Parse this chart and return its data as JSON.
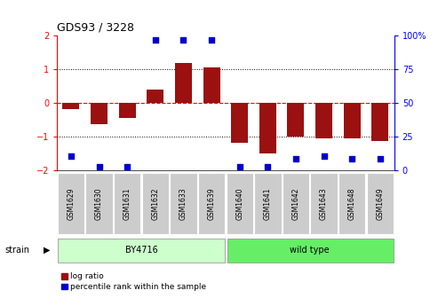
{
  "title": "GDS93 / 3228",
  "samples": [
    "GSM1629",
    "GSM1630",
    "GSM1631",
    "GSM1632",
    "GSM1633",
    "GSM1639",
    "GSM1640",
    "GSM1641",
    "GSM1642",
    "GSM1643",
    "GSM1648",
    "GSM1649"
  ],
  "log_ratio": [
    -0.2,
    -0.65,
    -0.45,
    0.4,
    1.2,
    1.05,
    -1.2,
    -1.5,
    -1.0,
    -1.05,
    -1.05,
    -1.15
  ],
  "percentile": [
    10,
    2,
    2,
    97,
    97,
    97,
    2,
    2,
    8,
    10,
    8,
    8
  ],
  "group1_label": "BY4716",
  "group2_label": "wild type",
  "strain_label": "strain",
  "ylim": [
    -2,
    2
  ],
  "y2lim": [
    0,
    100
  ],
  "yticks": [
    -2,
    -1,
    0,
    1,
    2
  ],
  "y2ticks": [
    0,
    25,
    50,
    75,
    100
  ],
  "bar_color": "#9B1010",
  "dot_color": "#0000CC",
  "group1_bg": "#CCFFCC",
  "group2_bg": "#66EE66",
  "xticklabel_bg": "#CCCCCC",
  "legend_red_label": "log ratio",
  "legend_blue_label": "percentile rank within the sample",
  "n_group1": 6,
  "n_group2": 6
}
